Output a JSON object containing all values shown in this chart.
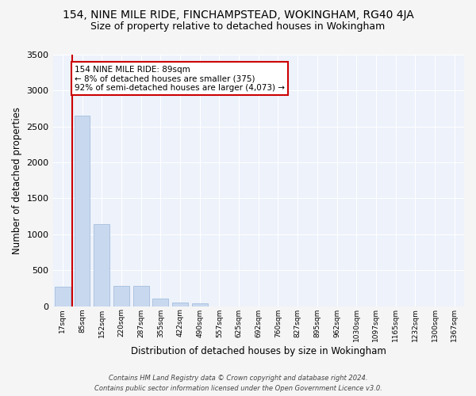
{
  "title1": "154, NINE MILE RIDE, FINCHAMPSTEAD, WOKINGHAM, RG40 4JA",
  "title2": "Size of property relative to detached houses in Wokingham",
  "xlabel": "Distribution of detached houses by size in Wokingham",
  "ylabel": "Number of detached properties",
  "bar_color": "#c8d9ef",
  "bar_edge_color": "#9ab5d8",
  "categories": [
    "17sqm",
    "85sqm",
    "152sqm",
    "220sqm",
    "287sqm",
    "355sqm",
    "422sqm",
    "490sqm",
    "557sqm",
    "625sqm",
    "692sqm",
    "760sqm",
    "827sqm",
    "895sqm",
    "962sqm",
    "1030sqm",
    "1097sqm",
    "1165sqm",
    "1232sqm",
    "1300sqm",
    "1367sqm"
  ],
  "values": [
    265,
    2650,
    1145,
    285,
    285,
    100,
    55,
    35,
    0,
    0,
    0,
    0,
    0,
    0,
    0,
    0,
    0,
    0,
    0,
    0,
    0
  ],
  "ylim": [
    0,
    3500
  ],
  "yticks": [
    0,
    500,
    1000,
    1500,
    2000,
    2500,
    3000,
    3500
  ],
  "property_line_x": 0.5,
  "annotation_text": "154 NINE MILE RIDE: 89sqm\n← 8% of detached houses are smaller (375)\n92% of semi-detached houses are larger (4,073) →",
  "annotation_box_color": "#ffffff",
  "annotation_box_edge": "#cc0000",
  "property_line_color": "#cc0000",
  "footer1": "Contains HM Land Registry data © Crown copyright and database right 2024.",
  "footer2": "Contains public sector information licensed under the Open Government Licence v3.0.",
  "bg_color": "#edf2fb",
  "grid_color": "#ffffff",
  "title1_fontsize": 10,
  "title2_fontsize": 9,
  "fig_width": 6.0,
  "fig_height": 5.0,
  "dpi": 100
}
